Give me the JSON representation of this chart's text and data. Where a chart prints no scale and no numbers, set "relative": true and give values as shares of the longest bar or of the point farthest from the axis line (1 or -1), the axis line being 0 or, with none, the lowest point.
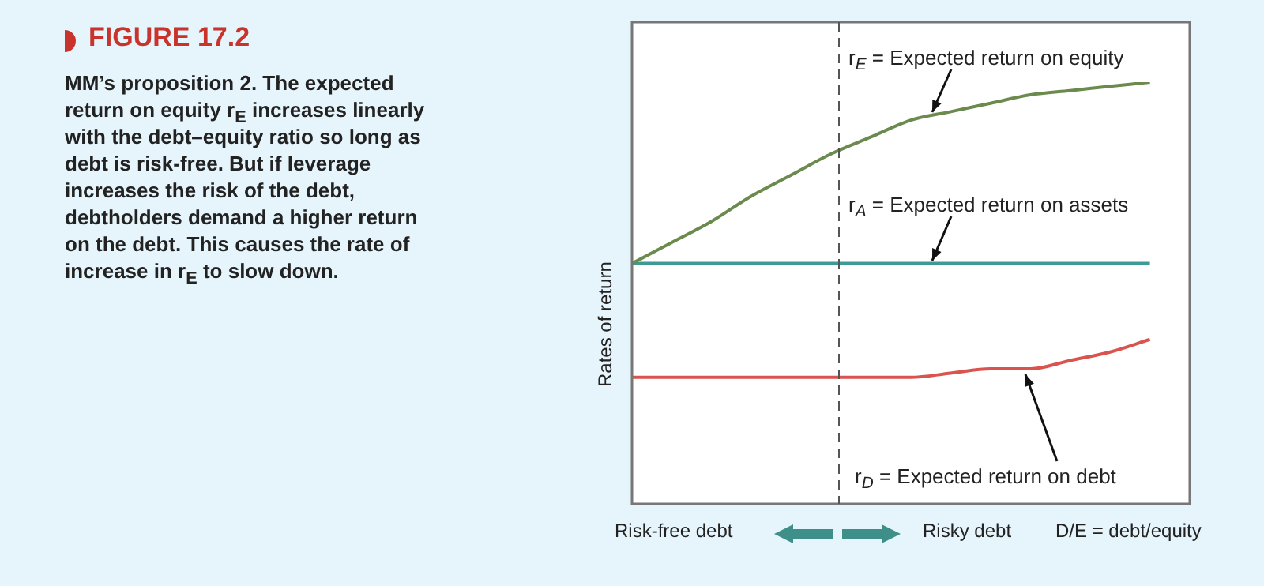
{
  "chart_data": {
    "type": "line",
    "title": "FIGURE 17.2",
    "subtitle": "MM’s proposition 2. The expected return on equity r$_{E}$ increases linearly with the debt–equity ratio so long as debt is risk-free. But if leverage increases the risk of the debt, debtholders demand a higher return on the debt. This causes the rate of increase in r$_{E}$ to slow down.",
    "ylabel": "Rates of return",
    "xlabel": "D/E = debt/equity",
    "annotations": [
      "Risk-free debt",
      "Risky debt"
    ],
    "relative": true,
    "legend": false,
    "tick_labels": false,
    "marker": "none",
    "categories": [
      null,
      null,
      null,
      null,
      null,
      null,
      null,
      null,
      null,
      null,
      null,
      null,
      null,
      null,
      null
    ],
    "series": [
      {
        "name": "r$_{E}$ = Expected return on equity",
        "color": "#6b8a4e",
        "values": [
          0.57,
          0.62,
          0.67,
          0.73,
          0.78,
          0.83,
          0.87,
          0.91,
          0.93,
          0.95,
          0.97,
          0.98,
          0.99,
          1,
          null
        ]
      },
      {
        "name": "r$_{A}$ = Expected return on assets",
        "color": "#3e9a94",
        "values": [
          0.57,
          0.57,
          0.57,
          0.57,
          0.57,
          0.57,
          0.57,
          0.57,
          0.57,
          0.57,
          0.57,
          0.57,
          0.57,
          0.57,
          null
        ]
      },
      {
        "name": "r$_{D}$ = Expected return on debt",
        "color": "#d9534f",
        "values": [
          0.3,
          0.3,
          0.3,
          0.3,
          0.3,
          0.3,
          0.3,
          0.3,
          0.31,
          0.32,
          0.32,
          0.34,
          0.36,
          0.39,
          null
        ]
      }
    ]
  }
}
